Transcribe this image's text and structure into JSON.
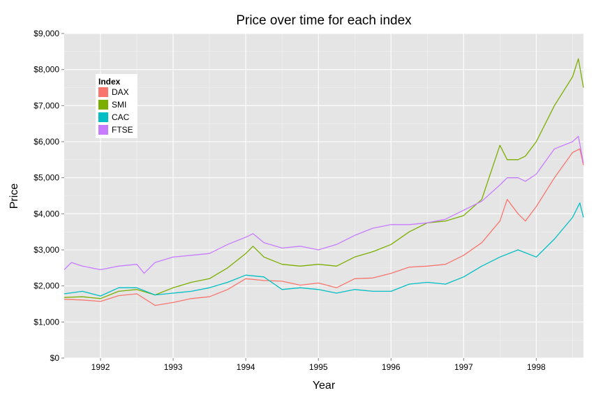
{
  "chart_data": {
    "type": "line",
    "title": "Price over time for each index",
    "xlabel": "Year",
    "ylabel": "Price",
    "xlim": [
      1991.5,
      1998.65
    ],
    "ylim": [
      0,
      9000
    ],
    "x_ticks": [
      1992,
      1993,
      1994,
      1995,
      1996,
      1997,
      1998
    ],
    "x_tick_labels": [
      "1992",
      "1993",
      "1994",
      "1995",
      "1996",
      "1997",
      "1998"
    ],
    "y_ticks": [
      0,
      1000,
      2000,
      3000,
      4000,
      5000,
      6000,
      7000,
      8000,
      9000
    ],
    "y_tick_labels": [
      "$0",
      "$1,000",
      "$2,000",
      "$3,000",
      "$4,000",
      "$5,000",
      "$6,000",
      "$7,000",
      "$8,000",
      "$9,000"
    ],
    "grid": true,
    "legend": {
      "title": "Index",
      "placement": "top-left"
    },
    "series": [
      {
        "name": "DAX",
        "color": "#F8766D",
        "x": [
          1991.5,
          1991.75,
          1992.0,
          1992.25,
          1992.5,
          1992.75,
          1993.0,
          1993.25,
          1993.5,
          1993.75,
          1994.0,
          1994.25,
          1994.5,
          1994.75,
          1995.0,
          1995.25,
          1995.5,
          1995.75,
          1996.0,
          1996.25,
          1996.5,
          1996.75,
          1997.0,
          1997.25,
          1997.5,
          1997.6,
          1997.75,
          1997.85,
          1998.0,
          1998.25,
          1998.5,
          1998.6,
          1998.65
        ],
        "values": [
          1630,
          1610,
          1570,
          1730,
          1780,
          1460,
          1540,
          1650,
          1700,
          1900,
          2200,
          2150,
          2130,
          2020,
          2080,
          1950,
          2200,
          2220,
          2350,
          2520,
          2550,
          2600,
          2850,
          3200,
          3800,
          4400,
          4000,
          3800,
          4200,
          5000,
          5700,
          5800,
          5350
        ]
      },
      {
        "name": "SMI",
        "color": "#7CAE00",
        "x": [
          1991.5,
          1991.75,
          1992.0,
          1992.25,
          1992.5,
          1992.75,
          1993.0,
          1993.25,
          1993.5,
          1993.75,
          1994.0,
          1994.1,
          1994.25,
          1994.5,
          1994.75,
          1995.0,
          1995.25,
          1995.5,
          1995.75,
          1996.0,
          1996.25,
          1996.5,
          1996.75,
          1997.0,
          1997.25,
          1997.5,
          1997.6,
          1997.75,
          1997.85,
          1998.0,
          1998.25,
          1998.5,
          1998.58,
          1998.65
        ],
        "values": [
          1680,
          1700,
          1650,
          1850,
          1900,
          1750,
          1950,
          2100,
          2200,
          2500,
          2900,
          3100,
          2800,
          2600,
          2550,
          2600,
          2550,
          2800,
          2950,
          3150,
          3500,
          3750,
          3800,
          3950,
          4400,
          5900,
          5500,
          5500,
          5600,
          6000,
          7000,
          7800,
          8300,
          7500
        ]
      },
      {
        "name": "CAC",
        "color": "#00BFC4",
        "x": [
          1991.5,
          1991.75,
          1992.0,
          1992.25,
          1992.5,
          1992.75,
          1993.0,
          1993.25,
          1993.5,
          1993.75,
          1994.0,
          1994.25,
          1994.5,
          1994.75,
          1995.0,
          1995.25,
          1995.5,
          1995.75,
          1996.0,
          1996.25,
          1996.5,
          1996.75,
          1997.0,
          1997.25,
          1997.5,
          1997.75,
          1998.0,
          1998.25,
          1998.5,
          1998.6,
          1998.65
        ],
        "values": [
          1780,
          1850,
          1720,
          1950,
          1950,
          1750,
          1800,
          1850,
          1950,
          2100,
          2300,
          2250,
          1900,
          1950,
          1900,
          1800,
          1900,
          1850,
          1850,
          2050,
          2100,
          2050,
          2250,
          2550,
          2800,
          3000,
          2800,
          3300,
          3900,
          4300,
          3900
        ]
      },
      {
        "name": "FTSE",
        "color": "#C77CFF",
        "x": [
          1991.5,
          1991.6,
          1991.75,
          1992.0,
          1992.25,
          1992.5,
          1992.6,
          1992.75,
          1993.0,
          1993.25,
          1993.5,
          1993.75,
          1994.0,
          1994.1,
          1994.25,
          1994.5,
          1994.75,
          1995.0,
          1995.25,
          1995.5,
          1995.75,
          1996.0,
          1996.25,
          1996.5,
          1996.75,
          1997.0,
          1997.25,
          1997.5,
          1997.6,
          1997.75,
          1997.85,
          1998.0,
          1998.25,
          1998.5,
          1998.58,
          1998.65
        ],
        "values": [
          2450,
          2650,
          2550,
          2450,
          2550,
          2600,
          2350,
          2650,
          2800,
          2850,
          2900,
          3150,
          3350,
          3450,
          3200,
          3050,
          3100,
          3000,
          3150,
          3400,
          3600,
          3700,
          3700,
          3750,
          3850,
          4100,
          4350,
          4800,
          5000,
          5000,
          4900,
          5100,
          5800,
          6000,
          6150,
          5400
        ]
      }
    ]
  }
}
